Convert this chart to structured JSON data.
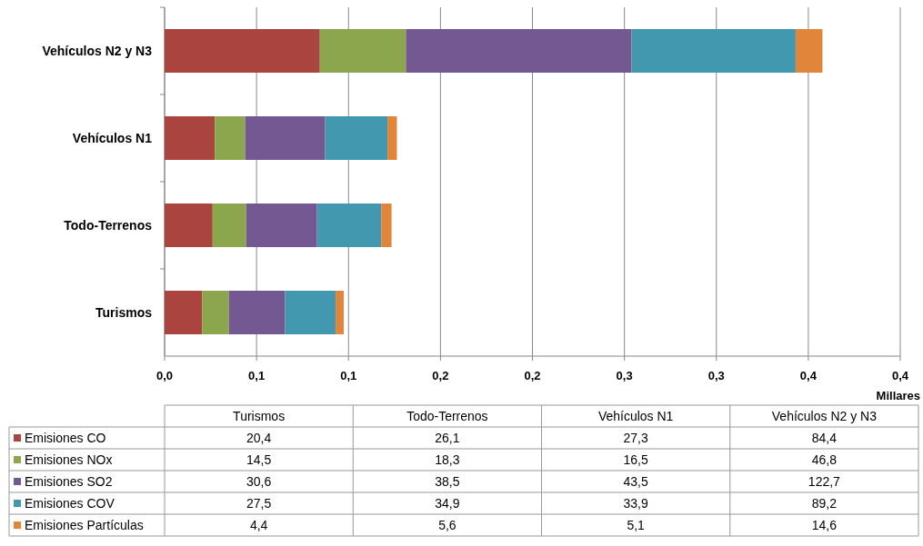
{
  "chart_data": {
    "type": "bar",
    "orientation": "horizontal",
    "stacked": true,
    "categories": [
      "Vehículos N2 y N3",
      "Vehículos N1",
      "Todo-Terrenos",
      "Turismos"
    ],
    "series": [
      {
        "name": "Emisiones CO",
        "color": "#a9443f",
        "values": [
          0.0844,
          0.0273,
          0.0261,
          0.0204
        ]
      },
      {
        "name": "Emisiones NOx",
        "color": "#8ba64d",
        "values": [
          0.0468,
          0.0165,
          0.0183,
          0.0145
        ]
      },
      {
        "name": "Emisiones SO2",
        "color": "#735891",
        "values": [
          0.1227,
          0.0435,
          0.0385,
          0.0306
        ]
      },
      {
        "name": "Emisiones COV",
        "color": "#4198af",
        "values": [
          0.0892,
          0.0339,
          0.0349,
          0.0275
        ]
      },
      {
        "name": "Emisiones Partículas",
        "color": "#e0853a",
        "values": [
          0.0146,
          0.0051,
          0.0056,
          0.0044
        ]
      }
    ],
    "xlim": [
      0,
      0.4
    ],
    "xticks": [
      {
        "value": 0,
        "label": "0,0"
      },
      {
        "value": 0.05,
        "label": "0,1"
      },
      {
        "value": 0.1,
        "label": "0,1"
      },
      {
        "value": 0.15,
        "label": "0,2"
      },
      {
        "value": 0.2,
        "label": "0,2"
      },
      {
        "value": 0.25,
        "label": "0,3"
      },
      {
        "value": 0.3,
        "label": "0,3"
      },
      {
        "value": 0.35,
        "label": "0,4"
      },
      {
        "value": 0.4,
        "label": "0,4"
      }
    ],
    "xlabel": "Millares",
    "grid": "x",
    "legend": "bottom",
    "annotations": [
      "20,4",
      "26,1",
      "27,3",
      "84,4",
      "14,5",
      "18,3",
      "16,5",
      "46,8",
      "30,6",
      "38,5",
      "43,5",
      "122,7",
      "27,5",
      "34,9",
      "33,9",
      "89,2",
      "4,4",
      "5,6",
      "5,1",
      "14,6"
    ]
  }
}
